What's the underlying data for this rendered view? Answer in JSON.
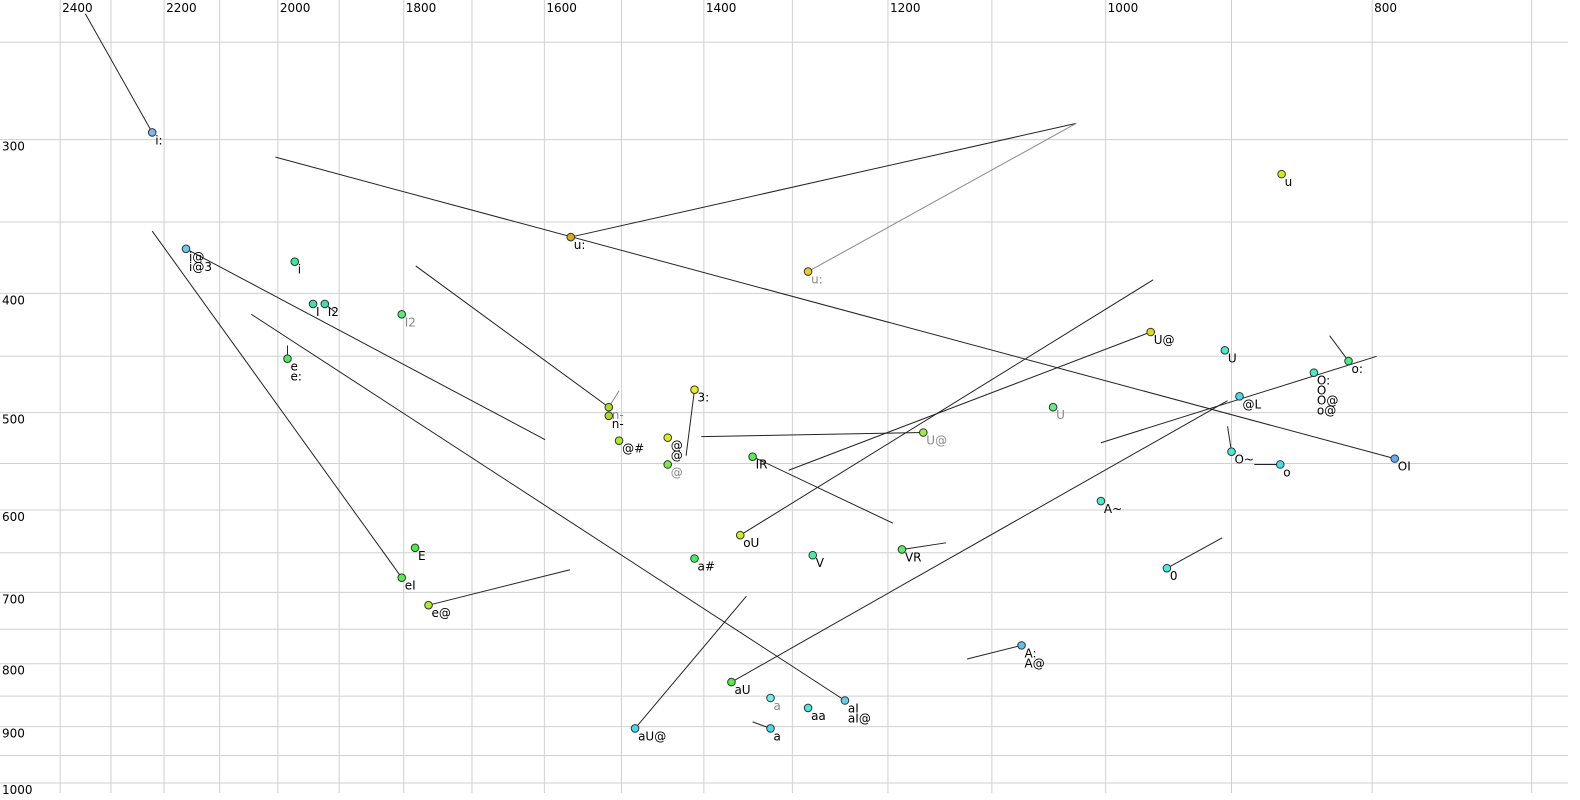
{
  "chart_data": {
    "type": "scatter",
    "x_scale": "log",
    "y_scale": "log",
    "xlim": [
      2524,
      679
    ],
    "ylim": [
      231,
      1019
    ],
    "xticks": [
      2400,
      2200,
      2000,
      1800,
      1600,
      1400,
      1200,
      1000,
      800
    ],
    "xminor": [
      2300,
      2100,
      1900,
      1700,
      1500,
      1300,
      1100,
      900,
      700
    ],
    "yticks": [
      300,
      400,
      500,
      600,
      700,
      800,
      900,
      1000
    ],
    "yminor": [
      250,
      350,
      450,
      550,
      650,
      750,
      850,
      950
    ],
    "grid": true,
    "grid_color": "#d0d0d0",
    "points": [
      {
        "labels": [
          "i:"
        ],
        "f2": 2222,
        "f1": 296,
        "color": "#7fb5f0",
        "label_color": "#000"
      },
      {
        "labels": [
          "i@",
          "i@3"
        ],
        "f2": 2160,
        "f1": 368,
        "color": "#66ccee",
        "label_color": "#000"
      },
      {
        "labels": [
          "i"
        ],
        "f2": 1972,
        "f1": 377,
        "color": "#33ee99",
        "label_color": "#000"
      },
      {
        "labels": [
          "I"
        ],
        "f2": 1942,
        "f1": 408,
        "color": "#44ddaa",
        "label_color": "#000"
      },
      {
        "labels": [
          "I2"
        ],
        "f2": 1923,
        "f1": 408,
        "color": "#44ddaa",
        "label_color": "#000"
      },
      {
        "labels": [
          "I2"
        ],
        "f2": 1803,
        "f1": 416,
        "color": "#55ee77",
        "label_color": "#888"
      },
      {
        "labels": [
          "e",
          "e:"
        ],
        "f2": 1984,
        "f1": 452,
        "color": "#44ee66",
        "label_color": "#000"
      },
      {
        "labels": [
          "E"
        ],
        "f2": 1783,
        "f1": 644,
        "color": "#44ee44",
        "label_color": "#000"
      },
      {
        "labels": [
          "eI"
        ],
        "f2": 1803,
        "f1": 681,
        "color": "#55ee44",
        "label_color": "#000"
      },
      {
        "labels": [
          "e@"
        ],
        "f2": 1763,
        "f1": 717,
        "color": "#aaee22",
        "label_color": "#000"
      },
      {
        "labels": [
          "u:"
        ],
        "f2": 1565,
        "f1": 360,
        "color": "#ddaa11",
        "label_color": "#000"
      },
      {
        "labels": [
          "u:"
        ],
        "f2": 1283,
        "f1": 384,
        "color": "#eecc22",
        "label_color": "#888"
      },
      {
        "labels": [
          "n-"
        ],
        "f2": 1516,
        "f1": 495,
        "color": "#aadd22",
        "label_color": "#888"
      },
      {
        "labels": [
          "n-"
        ],
        "f2": 1516,
        "f1": 503,
        "color": "#aadd22",
        "label_color": "#000"
      },
      {
        "labels": [
          "@#"
        ],
        "f2": 1503,
        "f1": 527,
        "color": "#aaee22",
        "label_color": "#000"
      },
      {
        "labels": [
          "@",
          "@"
        ],
        "f2": 1443,
        "f1": 524,
        "color": "#ddee11",
        "label_color": "#000"
      },
      {
        "labels": [
          "@"
        ],
        "f2": 1443,
        "f1": 551,
        "color": "#77ee44",
        "label_color": "#888"
      },
      {
        "labels": [
          "3:"
        ],
        "f2": 1411,
        "f1": 479,
        "color": "#eeee11",
        "label_color": "#000"
      },
      {
        "labels": [
          "IR"
        ],
        "f2": 1344,
        "f1": 543,
        "color": "#55ee55",
        "label_color": "#000"
      },
      {
        "labels": [
          "oU"
        ],
        "f2": 1358,
        "f1": 629,
        "color": "#ccee22",
        "label_color": "#000"
      },
      {
        "labels": [
          "a#"
        ],
        "f2": 1411,
        "f1": 657,
        "color": "#44ee66",
        "label_color": "#000"
      },
      {
        "labels": [
          "V"
        ],
        "f2": 1278,
        "f1": 653,
        "color": "#44eeaa",
        "label_color": "#000"
      },
      {
        "labels": [
          "VR"
        ],
        "f2": 1186,
        "f1": 646,
        "color": "#55ee66",
        "label_color": "#000"
      },
      {
        "labels": [
          "U@"
        ],
        "f2": 1165,
        "f1": 519,
        "color": "#99ee44",
        "label_color": "#888"
      },
      {
        "labels": [
          "U@"
        ],
        "f2": 963,
        "f1": 430,
        "color": "#dddd11",
        "label_color": "#000"
      },
      {
        "labels": [
          "U"
        ],
        "f2": 905,
        "f1": 445,
        "color": "#44eecc",
        "label_color": "#000"
      },
      {
        "labels": [
          "U"
        ],
        "f2": 1045,
        "f1": 495,
        "color": "#66ee88",
        "label_color": "#888"
      },
      {
        "labels": [
          "u"
        ],
        "f2": 863,
        "f1": 320,
        "color": "#ccee11",
        "label_color": "#000"
      },
      {
        "labels": [
          "o:"
        ],
        "f2": 816,
        "f1": 454,
        "color": "#44ee88",
        "label_color": "#000"
      },
      {
        "labels": [
          "O:",
          "O",
          "O@",
          "o@"
        ],
        "f2": 840,
        "f1": 464,
        "color": "#44eecc",
        "label_color": "#000"
      },
      {
        "labels": [
          "@L"
        ],
        "f2": 894,
        "f1": 485,
        "color": "#44ddee",
        "label_color": "#000"
      },
      {
        "labels": [
          "OI"
        ],
        "f2": 785,
        "f1": 545,
        "color": "#66aaee",
        "label_color": "#000"
      },
      {
        "labels": [
          "O~"
        ],
        "f2": 900,
        "f1": 538,
        "color": "#44eedd",
        "label_color": "#000"
      },
      {
        "labels": [
          "o"
        ],
        "f2": 864,
        "f1": 551,
        "color": "#44ddee",
        "label_color": "#000"
      },
      {
        "labels": [
          "A~"
        ],
        "f2": 1004,
        "f1": 590,
        "color": "#44eecc",
        "label_color": "#000"
      },
      {
        "labels": [
          "0"
        ],
        "f2": 950,
        "f1": 669,
        "color": "#44eedd",
        "label_color": "#000"
      },
      {
        "labels": [
          "A:",
          "A@"
        ],
        "f2": 1073,
        "f1": 773,
        "color": "#66bbee",
        "label_color": "#000"
      },
      {
        "labels": [
          "aU"
        ],
        "f2": 1368,
        "f1": 828,
        "color": "#55ee44",
        "label_color": "#000"
      },
      {
        "labels": [
          "a"
        ],
        "f2": 1324,
        "f1": 853,
        "color": "#77eeee",
        "label_color": "#888"
      },
      {
        "labels": [
          "aa"
        ],
        "f2": 1283,
        "f1": 869,
        "color": "#44eedd",
        "label_color": "#000"
      },
      {
        "labels": [
          "a"
        ],
        "f2": 1324,
        "f1": 903,
        "color": "#44ddee",
        "label_color": "#000"
      },
      {
        "labels": [
          "aU@"
        ],
        "f2": 1483,
        "f1": 903,
        "color": "#44ddee",
        "label_color": "#000"
      },
      {
        "labels": [
          "aI",
          "aI@"
        ],
        "f2": 1244,
        "f1": 857,
        "color": "#66ccee",
        "label_color": "#000"
      }
    ],
    "segments": [
      {
        "f2": [
          2350,
          2222
        ],
        "f1": [
          237,
          296
        ],
        "color": "#222"
      },
      {
        "f2": [
          2004,
          785
        ],
        "f1": [
          310,
          545
        ],
        "color": "#222"
      },
      {
        "f2": [
          1565,
          1025
        ],
        "f1": [
          360,
          291
        ],
        "color": "#222"
      },
      {
        "f2": [
          1283,
          1025
        ],
        "f1": [
          384,
          291
        ],
        "color": "#888"
      },
      {
        "f2": [
          2222,
          1803
        ],
        "f1": [
          356,
          681
        ],
        "color": "#222"
      },
      {
        "f2": [
          2160,
          1599
        ],
        "f1": [
          368,
          526
        ],
        "color": "#222"
      },
      {
        "f2": [
          2045,
          1244
        ],
        "f1": [
          416,
          857
        ],
        "color": "#222"
      },
      {
        "f2": [
          1984,
          1984
        ],
        "f1": [
          441,
          452
        ],
        "color": "#222"
      },
      {
        "f2": [
          1923,
          1907
        ],
        "f1": [
          408,
          414
        ],
        "color": "#222"
      },
      {
        "f2": [
          1782,
          1516
        ],
        "f1": [
          380,
          495
        ],
        "color": "#222"
      },
      {
        "f2": [
          1516,
          1503
        ],
        "f1": [
          495,
          480
        ],
        "color": "#888"
      },
      {
        "f2": [
          1763,
          1566
        ],
        "f1": [
          717,
          671
        ],
        "color": "#222"
      },
      {
        "f2": [
          1411,
          1421
        ],
        "f1": [
          479,
          542
        ],
        "color": "#222"
      },
      {
        "f2": [
          1403,
          1165
        ],
        "f1": [
          523,
          519
        ],
        "color": "#222"
      },
      {
        "f2": [
          1344,
          1195
        ],
        "f1": [
          543,
          615
        ],
        "color": "#222"
      },
      {
        "f2": [
          1358,
          961
        ],
        "f1": [
          629,
          390
        ],
        "color": "#222"
      },
      {
        "f2": [
          1304,
          963
        ],
        "f1": [
          557,
          430
        ],
        "color": "#222"
      },
      {
        "f2": [
          1186,
          1143
        ],
        "f1": [
          646,
          638
        ],
        "color": "#222"
      },
      {
        "f2": [
          1368,
          903
        ],
        "f1": [
          828,
          489
        ],
        "color": "#222"
      },
      {
        "f2": [
          1004,
          797
        ],
        "f1": [
          529,
          450
        ],
        "color": "#222"
      },
      {
        "f2": [
          1483,
          1351
        ],
        "f1": [
          903,
          705
        ],
        "color": "#222"
      },
      {
        "f2": [
          1344,
          1324
        ],
        "f1": [
          892,
          903
        ],
        "color": "#222"
      },
      {
        "f2": [
          1123,
          1073
        ],
        "f1": [
          793,
          773
        ],
        "color": "#222"
      },
      {
        "f2": [
          950,
          907
        ],
        "f1": [
          669,
          632
        ],
        "color": "#222"
      },
      {
        "f2": [
          900,
          903
        ],
        "f1": [
          538,
          513
        ],
        "color": "#222"
      },
      {
        "f2": [
          883,
          864
        ],
        "f1": [
          551,
          551
        ],
        "color": "#222"
      },
      {
        "f2": [
          816,
          829
        ],
        "f1": [
          454,
          433
        ],
        "color": "#222"
      }
    ]
  }
}
